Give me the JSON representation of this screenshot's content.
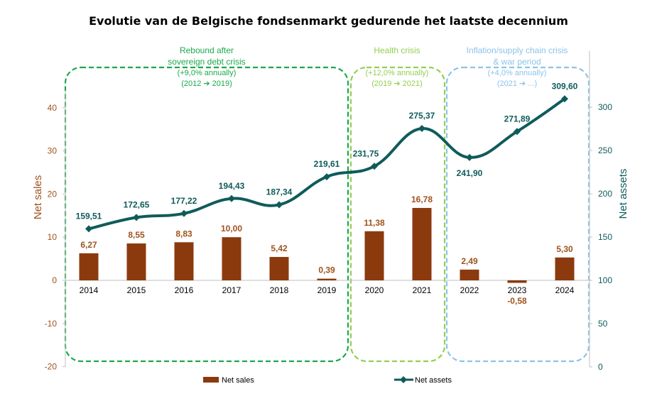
{
  "chart_data": {
    "type": "bar+line",
    "title": "Evolutie van de Belgische fondsenmarkt gedurende het laatste decennium",
    "categories": [
      "2014",
      "2015",
      "2016",
      "2017",
      "2018",
      "2019",
      "2020",
      "2021",
      "2022",
      "2023",
      "2024"
    ],
    "series": [
      {
        "name": "Net sales",
        "type": "bar",
        "axis": "left",
        "color": "#8B3A0E",
        "values": [
          6.27,
          8.55,
          8.83,
          10.0,
          5.42,
          0.39,
          11.38,
          16.78,
          2.49,
          -0.58,
          5.3
        ],
        "labels": [
          "6,27",
          "8,55",
          "8,83",
          "10,00",
          "5,42",
          "0,39",
          "11,38",
          "16,78",
          "2,49",
          "-0,58",
          "5,30"
        ]
      },
      {
        "name": "Net assets",
        "type": "line",
        "axis": "right",
        "color": "#0F5B5B",
        "values": [
          159.51,
          172.65,
          177.22,
          194.43,
          187.34,
          219.61,
          231.75,
          275.37,
          241.9,
          271.89,
          309.6
        ],
        "labels": [
          "159,51",
          "172,65",
          "177,22",
          "194,43",
          "187,34",
          "219,61",
          "231,75",
          "275,37",
          "241,90",
          "271,89",
          "309,60"
        ]
      }
    ],
    "y_left": {
      "label": "Net sales",
      "lim": [
        -20,
        45
      ],
      "ticks": [
        "-20",
        "-10",
        "0",
        "10",
        "20",
        "30",
        "40"
      ],
      "tick_values": [
        -20,
        -10,
        0,
        10,
        20,
        30,
        40
      ],
      "color": "#A0521C"
    },
    "y_right": {
      "label": "Net assets",
      "lim": [
        0,
        365
      ],
      "ticks": [
        "0",
        "50",
        "100",
        "150",
        "200",
        "250",
        "300"
      ],
      "tick_values": [
        0,
        50,
        100,
        150,
        200,
        250,
        300
      ],
      "color": "#0F5B5B"
    },
    "legend_position": "bottom",
    "regions": [
      {
        "lines": [
          "Rebound after",
          "sovereign debt crisis",
          "(+9,0% annually)",
          "(2012 ➔ 2019)"
        ],
        "color": "#1BA94C",
        "from": "2014",
        "to": "2019"
      },
      {
        "lines": [
          "Health crisis",
          "(+12,0% annually)",
          "(2019 ➔ 2021)"
        ],
        "color": "#92D050",
        "from": "2020",
        "to": "2021"
      },
      {
        "lines": [
          "Inflation/supply chain crisis",
          "& war period",
          "(+4,0% annually)",
          "(2021 ➔ ...)"
        ],
        "color": "#8DC3E8",
        "from": "2022",
        "to": "2024"
      }
    ]
  }
}
